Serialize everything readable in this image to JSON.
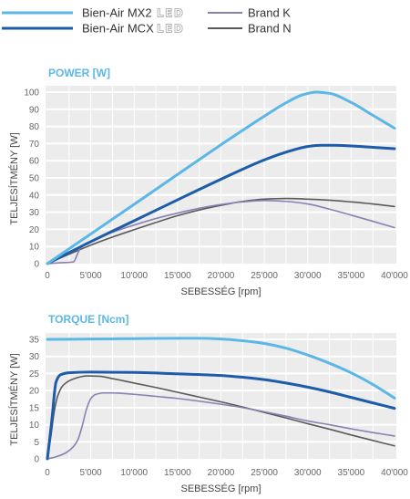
{
  "legend": {
    "items": [
      {
        "label": "Bien-Air MX2",
        "color": "#5cb7e7",
        "logo": "LED"
      },
      {
        "label": "Bien-Air MCX",
        "color": "#1c5ca8",
        "logo": "LED"
      },
      {
        "label": "Brand K",
        "color": "#8b7fb3"
      },
      {
        "label": "Brand N",
        "color": "#5a5a5a"
      }
    ]
  },
  "chart_data": [
    {
      "type": "line",
      "title": "POWER [W]",
      "xlabel": "SEBESSÉG [rpm]",
      "ylabel": "TELJESÍTMÉNY [W]",
      "xlim": [
        0,
        40000
      ],
      "ylim": [
        0,
        100
      ],
      "x_ticks": [
        0,
        5000,
        10000,
        15000,
        20000,
        25000,
        30000,
        35000,
        40000
      ],
      "x_tick_labels": [
        "0",
        "5'000",
        "10'000",
        "15'000",
        "20'000",
        "25'000",
        "30'000",
        "35'000",
        "40'000"
      ],
      "y_ticks": [
        0,
        10,
        20,
        30,
        40,
        50,
        60,
        70,
        80,
        90,
        100
      ],
      "y_tick_labels": [
        "0",
        "10",
        "20",
        "30",
        "40",
        "50",
        "60",
        "70",
        "80",
        "90",
        "100"
      ],
      "grid": true,
      "legend_position": "top",
      "series": [
        {
          "name": "Bien-Air MX2",
          "color": "#5cb7e7",
          "points": [
            [
              0,
              0
            ],
            [
              5000,
              17.3
            ],
            [
              10000,
              34.6
            ],
            [
              15000,
              52
            ],
            [
              20000,
              69.3
            ],
            [
              25000,
              86
            ],
            [
              27500,
              93.8
            ],
            [
              29500,
              98.6
            ],
            [
              31000,
              100
            ],
            [
              32500,
              99.3
            ],
            [
              35000,
              94
            ],
            [
              37500,
              86.5
            ],
            [
              40000,
              79
            ]
          ]
        },
        {
          "name": "Bien-Air MCX",
          "color": "#1c5ca8",
          "points": [
            [
              0,
              0
            ],
            [
              5000,
              12.8
            ],
            [
              10000,
              25
            ],
            [
              15000,
              37.2
            ],
            [
              20000,
              49.2
            ],
            [
              25000,
              60.5
            ],
            [
              27500,
              65
            ],
            [
              30000,
              68.3
            ],
            [
              31500,
              69
            ],
            [
              33000,
              69
            ],
            [
              35000,
              68.6
            ],
            [
              37500,
              67.8
            ],
            [
              40000,
              67
            ]
          ]
        },
        {
          "name": "Brand K",
          "color": "#8b7fb3",
          "points": [
            [
              0,
              0
            ],
            [
              1500,
              0.5
            ],
            [
              3000,
              1
            ],
            [
              3500,
              6
            ],
            [
              4000,
              10.5
            ],
            [
              5000,
              13
            ],
            [
              7500,
              18.3
            ],
            [
              10000,
              22.5
            ],
            [
              12500,
              26.3
            ],
            [
              15000,
              29.5
            ],
            [
              17500,
              32.3
            ],
            [
              20000,
              34.5
            ],
            [
              22500,
              36
            ],
            [
              25000,
              36.8
            ],
            [
              27500,
              36.3
            ],
            [
              30000,
              34.8
            ],
            [
              32500,
              31.8
            ],
            [
              35000,
              28.3
            ],
            [
              37500,
              24.7
            ],
            [
              40000,
              21
            ]
          ]
        },
        {
          "name": "Brand N",
          "color": "#5a5a5a",
          "points": [
            [
              0,
              0
            ],
            [
              2500,
              5.5
            ],
            [
              5000,
              10.8
            ],
            [
              7500,
              15.5
            ],
            [
              10000,
              19.8
            ],
            [
              12500,
              24
            ],
            [
              15000,
              28
            ],
            [
              17500,
              31.3
            ],
            [
              20000,
              34
            ],
            [
              22500,
              36.3
            ],
            [
              25000,
              37.6
            ],
            [
              27500,
              38
            ],
            [
              30000,
              37.6
            ],
            [
              32500,
              37
            ],
            [
              35000,
              36
            ],
            [
              37500,
              34.8
            ],
            [
              40000,
              33.3
            ]
          ]
        }
      ]
    },
    {
      "type": "line",
      "title": "TORQUE [Ncm]",
      "xlabel": "SEBESSÉG [rpm]",
      "ylabel": "TELJESÍTMÉNY [W]",
      "xlim": [
        0,
        40000
      ],
      "ylim": [
        0,
        35
      ],
      "x_ticks": [
        0,
        5000,
        10000,
        15000,
        20000,
        25000,
        30000,
        35000,
        40000
      ],
      "x_tick_labels": [
        "0",
        "5'000",
        "10'000",
        "15'000",
        "20'000",
        "25'000",
        "30'000",
        "35'000",
        "40'000"
      ],
      "y_ticks": [
        0,
        5,
        10,
        15,
        20,
        25,
        30,
        35
      ],
      "y_tick_labels": [
        "0",
        "5",
        "10",
        "15",
        "20",
        "25",
        "30",
        "35"
      ],
      "grid": true,
      "legend_position": "top",
      "series": [
        {
          "name": "Bien-Air MX2",
          "color": "#5cb7e7",
          "points": [
            [
              0,
              35
            ],
            [
              5000,
              35.1
            ],
            [
              10000,
              35.2
            ],
            [
              15000,
              35.3
            ],
            [
              17500,
              35.3
            ],
            [
              20000,
              35.1
            ],
            [
              22500,
              34.6
            ],
            [
              25000,
              33.8
            ],
            [
              27500,
              32.4
            ],
            [
              30000,
              30.4
            ],
            [
              32500,
              28
            ],
            [
              35000,
              25.2
            ],
            [
              37500,
              21.8
            ],
            [
              40000,
              17.8
            ]
          ]
        },
        {
          "name": "Bien-Air MCX",
          "color": "#1c5ca8",
          "points": [
            [
              0,
              0
            ],
            [
              500,
              11
            ],
            [
              1000,
              22.5
            ],
            [
              1500,
              24.6
            ],
            [
              2500,
              25.2
            ],
            [
              5000,
              25.4
            ],
            [
              10000,
              25.3
            ],
            [
              15000,
              24.9
            ],
            [
              20000,
              24.4
            ],
            [
              22500,
              23.9
            ],
            [
              25000,
              23.2
            ],
            [
              27500,
              22.2
            ],
            [
              30000,
              21
            ],
            [
              32500,
              19.6
            ],
            [
              35000,
              18
            ],
            [
              37500,
              16.4
            ],
            [
              40000,
              14.8
            ]
          ]
        },
        {
          "name": "Brand K",
          "color": "#8b7fb3",
          "points": [
            [
              0,
              0
            ],
            [
              1000,
              0.6
            ],
            [
              2000,
              1.6
            ],
            [
              3000,
              3.6
            ],
            [
              3500,
              5.5
            ],
            [
              4000,
              9.5
            ],
            [
              4500,
              14.5
            ],
            [
              5000,
              17.6
            ],
            [
              5500,
              18.8
            ],
            [
              6500,
              19.3
            ],
            [
              7500,
              19.3
            ],
            [
              10000,
              18.9
            ],
            [
              12500,
              18.3
            ],
            [
              15000,
              17.7
            ],
            [
              17500,
              16.9
            ],
            [
              20000,
              16
            ],
            [
              22500,
              15
            ],
            [
              25000,
              13.8
            ],
            [
              27500,
              12.5
            ],
            [
              30000,
              11.1
            ],
            [
              32500,
              10
            ],
            [
              35000,
              8.8
            ],
            [
              37500,
              7.7
            ],
            [
              40000,
              6.7
            ]
          ]
        },
        {
          "name": "Brand N",
          "color": "#5a5a5a",
          "points": [
            [
              0,
              0
            ],
            [
              400,
              6.5
            ],
            [
              800,
              14
            ],
            [
              1200,
              18.5
            ],
            [
              1800,
              21.5
            ],
            [
              3000,
              23.4
            ],
            [
              4500,
              24.3
            ],
            [
              6000,
              24.2
            ],
            [
              7500,
              23.5
            ],
            [
              10000,
              22.2
            ],
            [
              12500,
              20.9
            ],
            [
              15000,
              19.5
            ],
            [
              17500,
              18.1
            ],
            [
              20000,
              16.7
            ],
            [
              22500,
              15.2
            ],
            [
              25000,
              13.6
            ],
            [
              27500,
              12
            ],
            [
              30000,
              10.3
            ],
            [
              32500,
              8.7
            ],
            [
              35000,
              7
            ],
            [
              37500,
              5.4
            ],
            [
              40000,
              3.8
            ]
          ]
        }
      ]
    }
  ]
}
